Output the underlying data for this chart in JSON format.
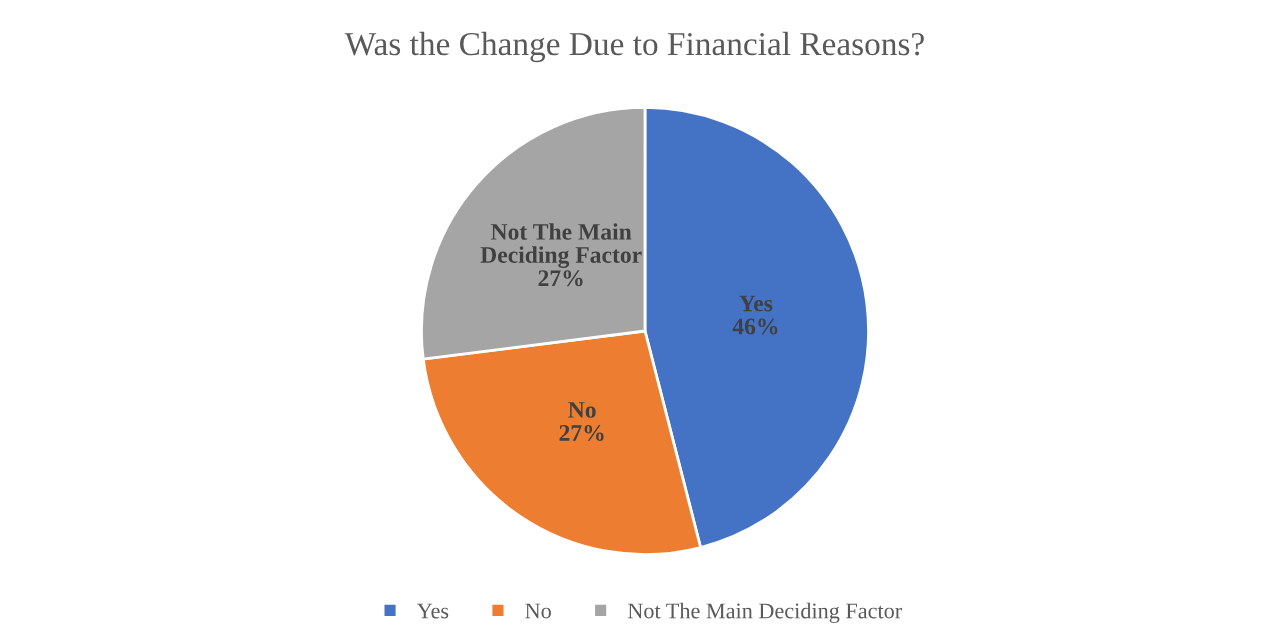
{
  "chart_data": {
    "type": "pie",
    "title": "Was the Change Due to Financial Reasons?",
    "categories": [
      "Yes",
      "No",
      "Not The Main Deciding Factor"
    ],
    "values": [
      46,
      27,
      27
    ],
    "value_labels": [
      "46%",
      "27%",
      "27%"
    ],
    "colors": [
      "#4472c4",
      "#ed7d31",
      "#a5a5a5"
    ],
    "legend": "bottom"
  }
}
